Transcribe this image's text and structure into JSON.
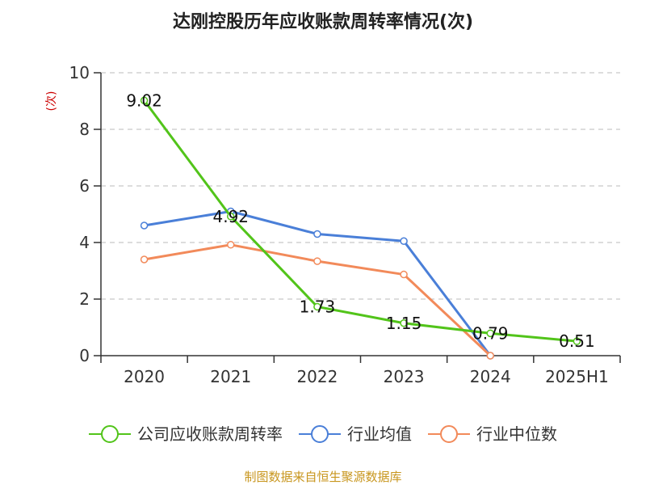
{
  "chart_data": {
    "type": "line",
    "title": "达刚控股历年应收账款周转率情况(次)",
    "ylabel": "(次)",
    "categories": [
      "2020",
      "2021",
      "2022",
      "2023",
      "2024",
      "2025H1"
    ],
    "ylim": [
      0,
      10
    ],
    "yticks": [
      0,
      2,
      4,
      6,
      8,
      10
    ],
    "grid": "horizontal-dashed",
    "legend_position": "bottom",
    "series": [
      {
        "name": "公司应收账款周转率",
        "color": "#52c41a",
        "values": [
          9.02,
          4.92,
          1.73,
          1.15,
          0.79,
          0.51
        ],
        "labels": [
          "9.02",
          "4.92",
          "1.73",
          "1.15",
          "0.79",
          "0.51"
        ]
      },
      {
        "name": "行业均值",
        "color": "#4a7fd8",
        "values": [
          4.6,
          5.1,
          4.3,
          4.05,
          0.0,
          null
        ]
      },
      {
        "name": "行业中位数",
        "color": "#f28a5a",
        "values": [
          3.4,
          3.92,
          3.34,
          2.87,
          0.0,
          null
        ]
      }
    ]
  },
  "source": "制图数据来自恒生聚源数据库"
}
